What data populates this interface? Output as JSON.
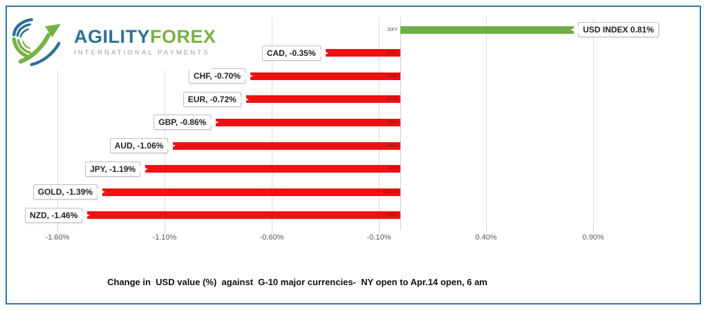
{
  "logo": {
    "brand_primary": "AGILITY",
    "brand_secondary": "FOREX",
    "tagline": "INTERNATIONAL PAYMENTS",
    "colors": {
      "primary": "#2F7096",
      "secondary": "#77B245",
      "tagline": "#9B9B9B"
    }
  },
  "caption": "Change in  USD value (%)  against  G-10 major currencies-  NY open to Apr.14 open, 6 am",
  "frame_color": "#2F74B5",
  "chart_data": {
    "type": "bar",
    "orientation": "horizontal",
    "title": "Change in  USD value (%)  against  G-10 major currencies-  NY open to Apr.14 open, 6 am",
    "categories": [
      "DXY",
      "CAD",
      "CHF",
      "EUR",
      "GBP",
      "AUD",
      "JPY",
      "GOLD",
      "NZD"
    ],
    "values": [
      0.81,
      -0.35,
      -0.7,
      -0.72,
      -0.86,
      -1.06,
      -1.19,
      -1.39,
      -1.46
    ],
    "data_labels": [
      "USD INDEX 0.81%",
      "CAD, -0.35%",
      "CHF, -0.70%",
      "EUR, -0.72%",
      "GBP, -0.86%",
      "AUD, -1.06%",
      "JPY, -1.19%",
      "GOLD, -1.39%",
      "NZD, -1.46%"
    ],
    "x_tick_labels": [
      "-1.60%",
      "-1.10%",
      "-0.60%",
      "-0.10%",
      "0.40%",
      "0.90%"
    ],
    "x_tick_values": [
      -1.6,
      -1.1,
      -0.6,
      -0.1,
      0.4,
      0.9
    ],
    "xlim": [
      -1.79,
      1.43
    ],
    "grid": true,
    "legend": false,
    "colors": {
      "positive_bar": "#70AD47",
      "negative_bar": "#EE1111",
      "gridline": "#DCDCDC",
      "axis_text": "#595959",
      "label_box_border": "#BFBFBF",
      "inbar_category_label": "#9E1212",
      "outside_category_label": "#7F7F7F"
    }
  }
}
